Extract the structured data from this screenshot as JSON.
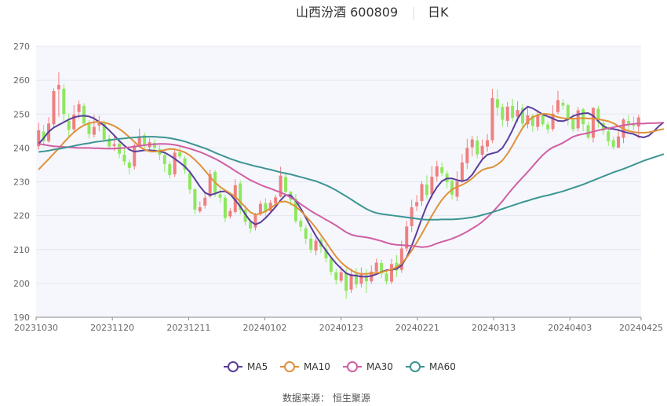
{
  "title": "山西汾酒 600809",
  "period": "日K",
  "source": "数据来源：  恒生聚源",
  "colors": {
    "up": "#f07f7f",
    "down": "#8ee75e",
    "grid": "#e5e7ef",
    "plot_bg": "#f5f7fc"
  },
  "chart_data": {
    "type": "candlestick",
    "ylim": [
      190,
      270
    ],
    "yticks": [
      190,
      200,
      210,
      220,
      230,
      240,
      250,
      260,
      270
    ],
    "xtick_labels": [
      "20231030",
      "20231120",
      "20231211",
      "20240102",
      "20240123",
      "20240221",
      "20240313",
      "20240403",
      "20240425"
    ],
    "xtick_index": [
      0,
      15,
      30,
      45,
      60,
      75,
      90,
      105,
      120
    ],
    "candles": [
      [
        240.5,
        245.2,
        247.5,
        239.5
      ],
      [
        244.8,
        242.0,
        246.8,
        240.5
      ],
      [
        242.0,
        247.2,
        249.1,
        241.5
      ],
      [
        247.0,
        256.8,
        257.6,
        245.8
      ],
      [
        257.3,
        258.6,
        262.3,
        249.2
      ],
      [
        257.5,
        250.0,
        258.8,
        247.5
      ],
      [
        248.0,
        245.3,
        250.2,
        243.5
      ],
      [
        245.5,
        249.8,
        252.6,
        244.8
      ],
      [
        250.6,
        252.9,
        254.0,
        248.6
      ],
      [
        252.4,
        247.2,
        253.2,
        246.4
      ],
      [
        247.5,
        244.1,
        248.2,
        242.8
      ],
      [
        243.9,
        246.2,
        249.8,
        243.1
      ],
      [
        246.6,
        247.4,
        249.5,
        244.9
      ],
      [
        247.2,
        242.5,
        248.1,
        241.8
      ],
      [
        242.8,
        240.4,
        243.9,
        239.5
      ],
      [
        240.6,
        241.1,
        243.6,
        239.1
      ],
      [
        241.3,
        238.3,
        242.0,
        237.0
      ],
      [
        238.0,
        236.0,
        240.1,
        234.9
      ],
      [
        235.7,
        234.1,
        236.6,
        232.2
      ],
      [
        234.6,
        240.7,
        241.3,
        233.6
      ],
      [
        240.6,
        243.5,
        245.7,
        240.3
      ],
      [
        243.7,
        240.8,
        244.5,
        239.3
      ],
      [
        240.2,
        241.7,
        242.8,
        239.2
      ],
      [
        241.5,
        240.1,
        242.5,
        238.9
      ],
      [
        239.6,
        238.0,
        240.8,
        236.4
      ],
      [
        237.9,
        235.2,
        239.2,
        232.8
      ],
      [
        235.2,
        232.0,
        236.1,
        231.0
      ],
      [
        232.2,
        238.6,
        239.7,
        231.4
      ],
      [
        238.7,
        237.5,
        240.6,
        236.8
      ],
      [
        236.9,
        233.6,
        237.6,
        232.3
      ],
      [
        232.6,
        227.7,
        233.5,
        226.4
      ],
      [
        227.8,
        221.8,
        228.2,
        220.4
      ],
      [
        221.3,
        222.5,
        224.2,
        220.8
      ],
      [
        223.0,
        225.3,
        227.0,
        222.1
      ],
      [
        225.7,
        232.3,
        233.6,
        225.2
      ],
      [
        232.9,
        226.4,
        233.5,
        225.5
      ],
      [
        226.3,
        225.3,
        227.9,
        223.8
      ],
      [
        225.3,
        219.3,
        226.2,
        218.1
      ],
      [
        219.8,
        221.4,
        222.3,
        219.1
      ],
      [
        221.1,
        229.0,
        230.8,
        220.5
      ],
      [
        229.5,
        221.8,
        230.4,
        220.3
      ],
      [
        221.8,
        218.2,
        223.2,
        217.1
      ],
      [
        218.1,
        216.2,
        219.0,
        214.9
      ],
      [
        216.5,
        220.3,
        220.8,
        215.6
      ],
      [
        220.6,
        223.5,
        224.4,
        219.9
      ],
      [
        223.7,
        221.0,
        225.2,
        219.6
      ],
      [
        221.4,
        223.8,
        224.6,
        220.9
      ],
      [
        223.6,
        225.4,
        226.2,
        222.5
      ],
      [
        225.6,
        231.8,
        234.5,
        225.4
      ],
      [
        231.4,
        227.0,
        232.9,
        225.7
      ],
      [
        227.0,
        224.7,
        227.3,
        223.0
      ],
      [
        225.0,
        218.4,
        226.4,
        217.8
      ],
      [
        218.5,
        216.7,
        219.3,
        215.4
      ],
      [
        216.3,
        213.2,
        217.2,
        211.5
      ],
      [
        213.2,
        209.9,
        214.9,
        209.0
      ],
      [
        209.7,
        212.6,
        213.4,
        208.3
      ],
      [
        212.9,
        210.8,
        213.6,
        209.0
      ],
      [
        210.1,
        207.4,
        211.5,
        206.2
      ],
      [
        207.3,
        203.4,
        208.1,
        202.4
      ],
      [
        203.3,
        201.0,
        204.3,
        199.7
      ],
      [
        200.8,
        203.3,
        205.1,
        200.2
      ],
      [
        203.2,
        197.8,
        204.3,
        195.4
      ],
      [
        198.2,
        202.8,
        204.4,
        197.2
      ],
      [
        202.8,
        199.7,
        204.5,
        198.6
      ],
      [
        199.9,
        203.0,
        204.7,
        198.8
      ],
      [
        202.4,
        200.6,
        204.2,
        197.2
      ],
      [
        200.6,
        203.5,
        205.3,
        199.9
      ],
      [
        203.5,
        206.1,
        207.3,
        202.5
      ],
      [
        206.0,
        202.9,
        207.0,
        201.5
      ],
      [
        202.9,
        200.6,
        204.1,
        199.7
      ],
      [
        200.5,
        205.7,
        207.2,
        199.8
      ],
      [
        206.1,
        203.8,
        208.4,
        201.9
      ],
      [
        204.0,
        210.3,
        212.6,
        203.1
      ],
      [
        210.3,
        216.8,
        218.5,
        209.4
      ],
      [
        216.9,
        222.5,
        224.7,
        215.2
      ],
      [
        222.8,
        224.0,
        226.1,
        221.4
      ],
      [
        224.3,
        229.3,
        230.2,
        222.9
      ],
      [
        229.2,
        226.1,
        231.9,
        224.9
      ],
      [
        226.3,
        231.5,
        234.7,
        225.2
      ],
      [
        231.6,
        234.6,
        236.2,
        230.1
      ],
      [
        234.3,
        232.6,
        235.7,
        231.7
      ],
      [
        232.4,
        229.9,
        233.3,
        228.1
      ],
      [
        230.3,
        226.2,
        230.8,
        224.8
      ],
      [
        225.6,
        230.1,
        233.1,
        224.3
      ],
      [
        230.4,
        235.7,
        238.2,
        229.7
      ],
      [
        235.5,
        240.0,
        242.7,
        233.8
      ],
      [
        240.2,
        242.5,
        243.5,
        237.5
      ],
      [
        242.2,
        238.1,
        243.5,
        236.9
      ],
      [
        238.0,
        240.6,
        242.5,
        236.4
      ],
      [
        240.4,
        242.3,
        244.1,
        238.9
      ],
      [
        242.3,
        254.7,
        257.5,
        241.4
      ],
      [
        254.4,
        251.9,
        257.3,
        249.4
      ],
      [
        252.1,
        248.3,
        253.0,
        246.3
      ],
      [
        248.0,
        252.2,
        253.6,
        246.2
      ],
      [
        252.4,
        248.9,
        254.5,
        247.9
      ],
      [
        249.2,
        251.2,
        253.8,
        247.6
      ],
      [
        251.8,
        247.2,
        253.0,
        245.7
      ],
      [
        247.0,
        249.6,
        252.1,
        245.8
      ],
      [
        249.5,
        246.5,
        250.0,
        244.8
      ],
      [
        246.2,
        249.9,
        251.3,
        245.1
      ],
      [
        249.6,
        247.0,
        250.2,
        246.3
      ],
      [
        246.9,
        245.5,
        247.8,
        244.2
      ],
      [
        245.6,
        250.1,
        252.6,
        244.9
      ],
      [
        250.6,
        254.1,
        256.9,
        250.0
      ],
      [
        253.3,
        252.5,
        254.3,
        251.3
      ],
      [
        252.6,
        248.7,
        253.1,
        246.6
      ],
      [
        248.3,
        245.5,
        250.0,
        244.7
      ],
      [
        245.8,
        251.1,
        252.1,
        244.9
      ],
      [
        251.4,
        247.0,
        251.9,
        244.9
      ],
      [
        246.7,
        243.1,
        247.7,
        242.5
      ],
      [
        243.0,
        251.8,
        252.0,
        241.6
      ],
      [
        251.6,
        247.7,
        252.4,
        246.0
      ],
      [
        247.3,
        245.1,
        248.4,
        243.8
      ],
      [
        244.9,
        242.0,
        246.4,
        240.6
      ],
      [
        242.3,
        240.3,
        243.3,
        239.5
      ],
      [
        240.1,
        243.4,
        245.5,
        239.9
      ],
      [
        243.0,
        248.4,
        248.8,
        241.4
      ],
      [
        248.0,
        247.1,
        249.7,
        245.3
      ],
      [
        247.3,
        246.5,
        249.3,
        245.2
      ],
      [
        246.3,
        249.0,
        249.8,
        242.8
      ]
    ],
    "series": [
      {
        "name": "MA5",
        "color": "#5a3e9c",
        "values": [
          241.2,
          242.9,
          244.8,
          246.0,
          246.8,
          247.6,
          248.4,
          249.0,
          249.4,
          249.5,
          249.3,
          248.7,
          247.7,
          246.6,
          245.2,
          243.7,
          242.1,
          240.7,
          239.5,
          238.9,
          239.1,
          239.3,
          239.3,
          239.2,
          239.0,
          238.6,
          237.8,
          236.8,
          235.7,
          234.5,
          232.9,
          230.8,
          228.6,
          226.8,
          226.1,
          226.5,
          227.1,
          227.2,
          226.3,
          224.6,
          222.7,
          220.4,
          218.4,
          217.4,
          218.0,
          219.3,
          220.9,
          222.6,
          224.6,
          226.1,
          226.0,
          224.4,
          222.1,
          219.4,
          216.6,
          214.0,
          211.8,
          209.7,
          207.7,
          205.9,
          204.4,
          203.0,
          202.4,
          202.3,
          202.0,
          202.0,
          202.2,
          202.7,
          203.4,
          203.9,
          204.0,
          204.3,
          205.3,
          207.7,
          211.1,
          215.0,
          219.2,
          223.0,
          226.0,
          228.4,
          230.2,
          231.0,
          231.0,
          230.5,
          230.2,
          230.6,
          232.1,
          234.4,
          236.6,
          238.0,
          238.4,
          238.8,
          240.0,
          242.4,
          245.3,
          248.6,
          250.9,
          252.2,
          251.7,
          250.8,
          249.9,
          249.3,
          248.7,
          248.0,
          247.9,
          248.4,
          249.4,
          249.9,
          250.2,
          250.3,
          249.5,
          247.9,
          246.5,
          245.7,
          245.6,
          245.3,
          244.8,
          244.4,
          244.1,
          243.4,
          243.1,
          243.6,
          244.9,
          246.4,
          247.6
        ]
      },
      {
        "name": "MA10",
        "color": "#e0913a",
        "values": [
          233.6,
          235.2,
          236.7,
          238.3,
          239.9,
          241.6,
          243.2,
          244.6,
          245.8,
          246.7,
          247.3,
          247.6,
          247.7,
          247.5,
          247.1,
          246.5,
          245.6,
          244.5,
          243.2,
          241.8,
          240.4,
          239.5,
          239.0,
          238.9,
          239.1,
          239.4,
          239.7,
          239.6,
          239.2,
          238.7,
          237.8,
          236.5,
          235.0,
          233.3,
          231.5,
          229.8,
          228.5,
          227.5,
          226.6,
          225.6,
          224.1,
          222.5,
          221.0,
          220.3,
          220.6,
          221.3,
          222.2,
          223.3,
          224.1,
          224.2,
          223.6,
          222.7,
          221.4,
          219.8,
          218.2,
          216.4,
          214.3,
          212.2,
          210.0,
          207.9,
          206.2,
          204.9,
          203.9,
          203.1,
          202.8,
          202.8,
          203.0,
          203.1,
          203.3,
          203.7,
          204.1,
          204.8,
          205.9,
          207.6,
          209.7,
          212.1,
          214.6,
          217.3,
          220.0,
          222.5,
          224.7,
          226.4,
          227.7,
          228.5,
          229.1,
          229.9,
          231.0,
          232.4,
          233.5,
          234.0,
          234.3,
          235.1,
          236.3,
          238.3,
          240.7,
          243.4,
          245.9,
          247.8,
          249.1,
          249.7,
          250.1,
          250.0,
          249.6,
          249.1,
          248.8,
          248.6,
          248.6,
          248.7,
          248.8,
          248.7,
          248.7,
          248.5,
          248.2,
          247.9,
          247.3,
          246.4,
          245.6,
          245.0,
          244.7,
          244.5,
          244.5,
          244.6,
          244.9,
          245.3,
          245.6
        ]
      },
      {
        "name": "MA30",
        "color": "#d05fa3",
        "values": [
          241.2,
          241.0,
          240.7,
          240.5,
          240.4,
          240.3,
          240.2,
          240.1,
          240.0,
          240.0,
          240.0,
          239.9,
          239.9,
          239.8,
          239.8,
          239.8,
          239.9,
          240.0,
          240.2,
          240.4,
          240.6,
          240.8,
          241.0,
          241.1,
          241.2,
          241.2,
          241.1,
          240.9,
          240.6,
          240.2,
          239.8,
          239.3,
          238.8,
          238.2,
          237.5,
          236.8,
          236.0,
          235.1,
          234.2,
          233.2,
          232.3,
          231.4,
          230.5,
          229.8,
          229.1,
          228.5,
          228.0,
          227.4,
          226.9,
          226.2,
          225.4,
          224.5,
          223.4,
          222.4,
          221.4,
          220.5,
          219.7,
          218.8,
          218.0,
          217.1,
          216.1,
          215.1,
          214.4,
          214.0,
          213.8,
          213.6,
          213.3,
          212.9,
          212.5,
          212.0,
          211.6,
          211.4,
          211.3,
          211.2,
          211.1,
          210.9,
          210.7,
          210.8,
          211.2,
          211.8,
          212.3,
          212.7,
          213.2,
          213.8,
          214.5,
          215.3,
          216.2,
          217.1,
          218.2,
          219.5,
          221.0,
          222.6,
          224.3,
          226.2,
          228.0,
          229.7,
          231.3,
          232.9,
          234.6,
          236.3,
          237.9,
          239.2,
          240.2,
          240.8,
          241.5,
          242.4,
          243.3,
          243.8,
          244.1,
          244.4,
          244.8,
          245.2,
          245.5,
          245.8,
          246.1,
          246.4,
          246.7,
          246.9,
          247.1,
          247.2,
          247.2,
          247.3,
          247.3,
          247.4,
          247.5
        ]
      },
      {
        "name": "MA60",
        "color": "#3d9593",
        "values": [
          238.8,
          239.0,
          239.2,
          239.5,
          239.7,
          240.0,
          240.3,
          240.6,
          240.9,
          241.2,
          241.4,
          241.7,
          241.9,
          242.1,
          242.3,
          242.5,
          242.7,
          242.8,
          243.0,
          243.1,
          243.2,
          243.3,
          243.3,
          243.3,
          243.2,
          243.1,
          242.9,
          242.6,
          242.3,
          241.9,
          241.4,
          240.9,
          240.4,
          239.9,
          239.3,
          238.6,
          238.0,
          237.4,
          236.8,
          236.3,
          235.8,
          235.4,
          235.0,
          234.6,
          234.3,
          233.9,
          233.6,
          233.2,
          232.8,
          232.5,
          232.2,
          231.8,
          231.4,
          231.0,
          230.6,
          230.2,
          229.6,
          229.0,
          228.3,
          227.5,
          226.6,
          225.7,
          224.8,
          223.8,
          222.9,
          222.0,
          221.3,
          220.8,
          220.5,
          220.3,
          220.1,
          219.9,
          219.7,
          219.5,
          219.3,
          219.1,
          218.9,
          218.8,
          218.8,
          218.8,
          218.9,
          218.9,
          218.9,
          219.0,
          219.1,
          219.3,
          219.5,
          219.8,
          220.2,
          220.6,
          221.0,
          221.5,
          222.0,
          222.5,
          223.0,
          223.5,
          224.0,
          224.4,
          224.9,
          225.3,
          225.7,
          226.0,
          226.4,
          226.8,
          227.2,
          227.7,
          228.2,
          228.7,
          229.2,
          229.8,
          230.4,
          231.0,
          231.6,
          232.2,
          232.8,
          233.3,
          233.8,
          234.4,
          235.0,
          235.6,
          236.2,
          236.7,
          237.2,
          237.7,
          238.2
        ]
      }
    ]
  }
}
